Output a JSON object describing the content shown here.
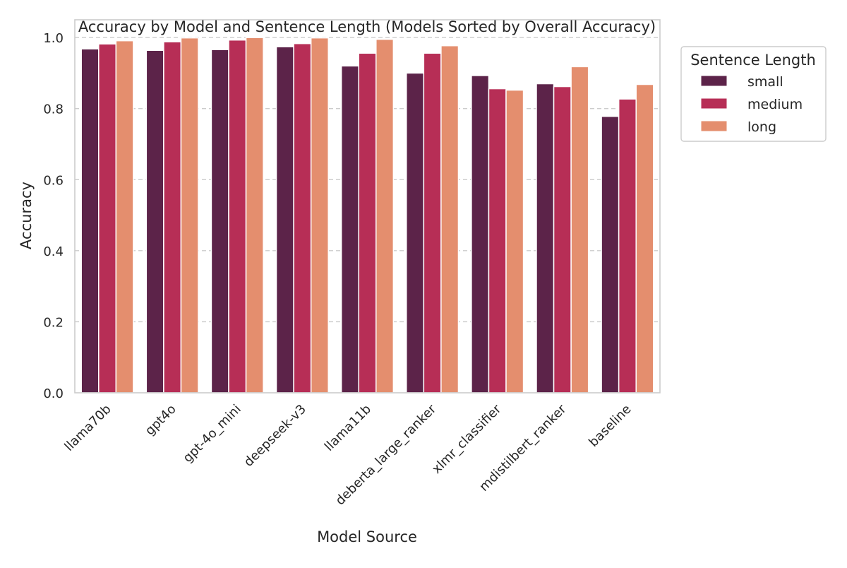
{
  "chart_data": {
    "type": "bar",
    "title": "Accuracy by Model and Sentence Length (Models Sorted by Overall Accuracy)",
    "xlabel": "Model Source",
    "ylabel": "Accuracy",
    "ylim": [
      0,
      1.05
    ],
    "yticks": [
      0.0,
      0.2,
      0.4,
      0.6,
      0.8,
      1.0
    ],
    "ytick_labels": [
      "0.0",
      "0.2",
      "0.4",
      "0.6",
      "0.8",
      "1.0"
    ],
    "grid": "y-dashed",
    "legend": {
      "title": "Sentence Length",
      "placement": "outside-top-right"
    },
    "categories": [
      "llama70b",
      "gpt4o",
      "gpt-4o_mini",
      "deepseek-v3",
      "llama11b",
      "deberta_large_ranker",
      "xlmr_classifier",
      "mdistilbert_ranker",
      "baseline"
    ],
    "series": [
      {
        "name": "small",
        "color": "#5c2349",
        "values": [
          0.968,
          0.964,
          0.966,
          0.974,
          0.92,
          0.9,
          0.893,
          0.87,
          0.778
        ]
      },
      {
        "name": "medium",
        "color": "#b72e56",
        "values": [
          0.982,
          0.988,
          0.993,
          0.983,
          0.956,
          0.956,
          0.856,
          0.862,
          0.827
        ]
      },
      {
        "name": "long",
        "color": "#e48e6e",
        "values": [
          0.991,
          0.999,
          1.0,
          0.999,
          0.995,
          0.977,
          0.852,
          0.918,
          0.868
        ]
      }
    ]
  }
}
